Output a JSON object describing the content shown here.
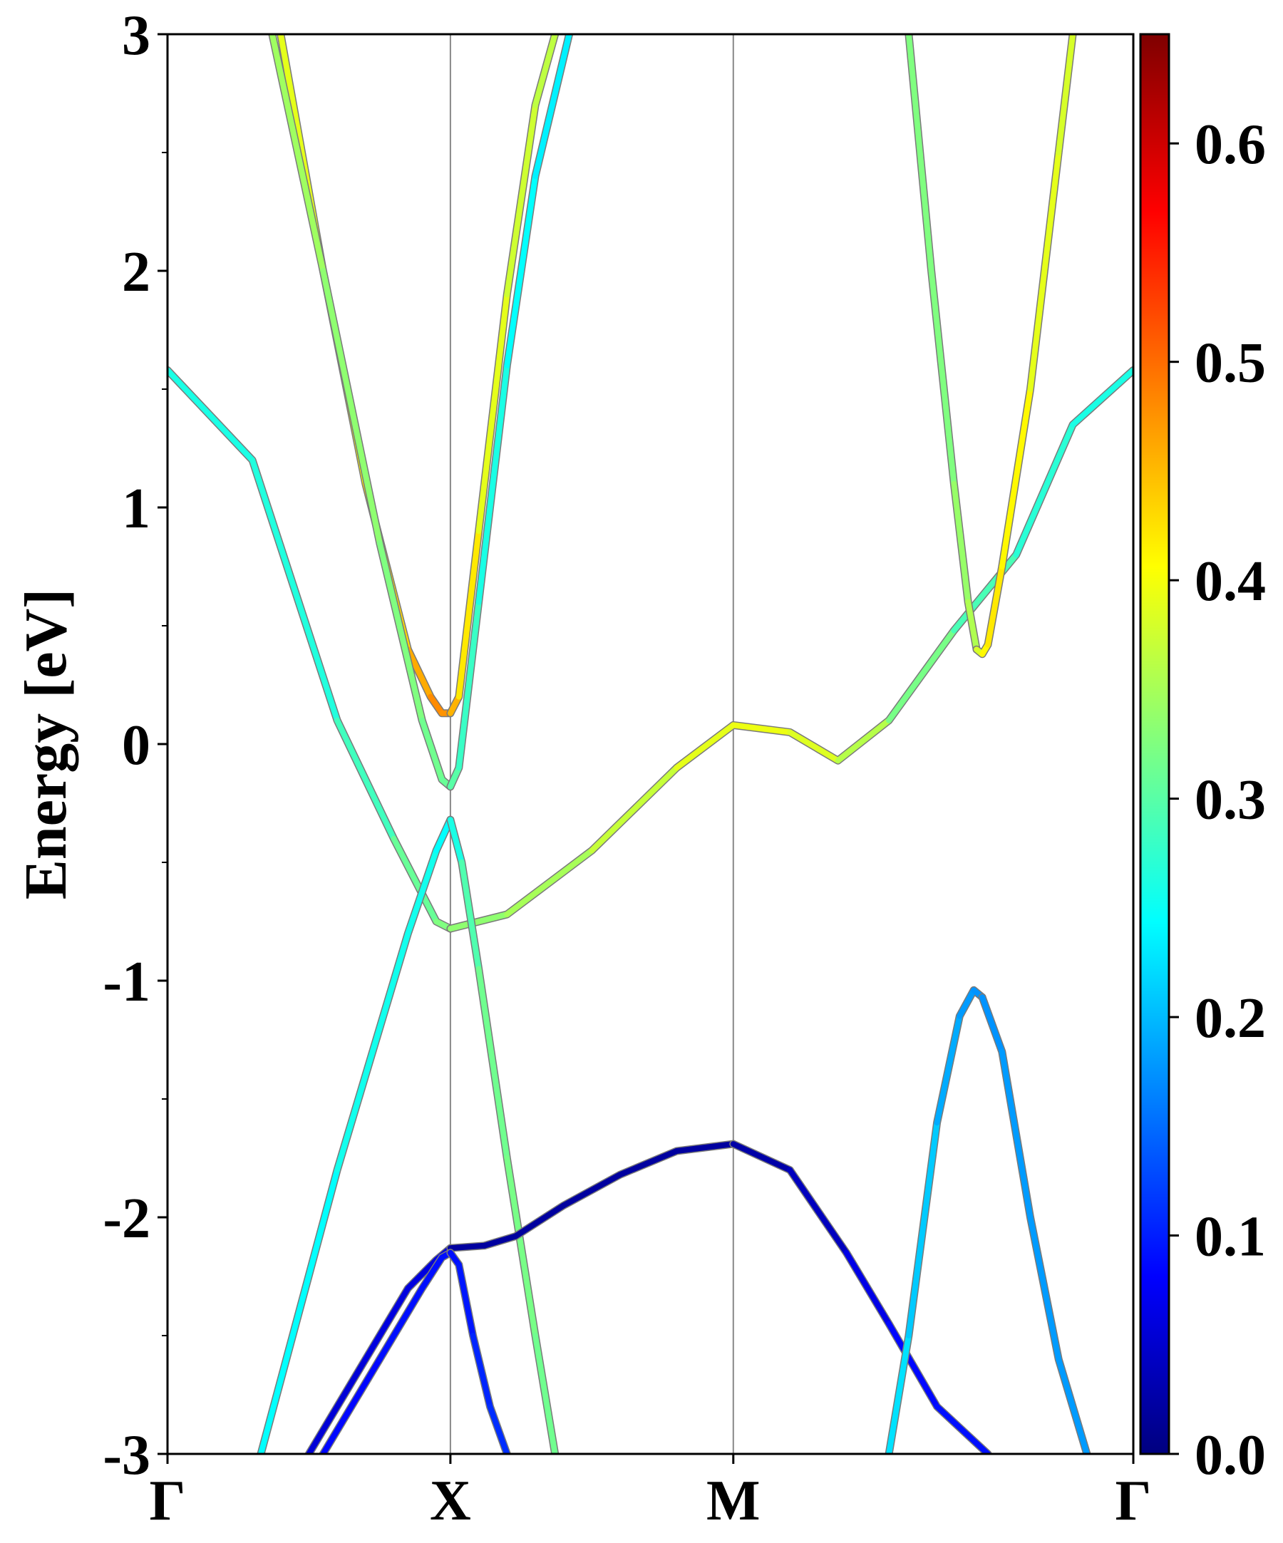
{
  "chart_data": {
    "type": "line",
    "title": "",
    "ylabel": "Energy [eV]",
    "xlabel": "",
    "ylim": [
      -3,
      3
    ],
    "y_ticks": [
      "3",
      "2",
      "1",
      "0",
      "-1",
      "-2",
      "-3"
    ],
    "y_tick_values": [
      3,
      2,
      1,
      0,
      -1,
      -2,
      -3
    ],
    "k_path_labels": [
      "Γ",
      "X",
      "M",
      "Γ"
    ],
    "k_path_values": [
      0,
      1,
      2,
      3.414
    ],
    "colorbar": {
      "colormap": "jet",
      "range": [
        0.0,
        0.65
      ],
      "ticks": [
        "0.0",
        "0.1",
        "0.2",
        "0.3",
        "0.4",
        "0.5",
        "0.6"
      ],
      "tick_values": [
        0.0,
        0.1,
        0.2,
        0.3,
        0.4,
        0.5,
        0.6
      ]
    },
    "grid": false,
    "series": [
      {
        "x": [
          0,
          0.3,
          0.6,
          0.8,
          0.95,
          1.0
        ],
        "y": [
          1.58,
          1.2,
          0.1,
          -0.4,
          -0.75,
          -0.78
        ],
        "c": [
          0.26,
          0.26,
          0.27,
          0.3,
          0.32,
          0.33
        ]
      },
      {
        "x": [
          1.0,
          1.2,
          1.5,
          1.8,
          2.0,
          2.2,
          2.37,
          2.55,
          2.78,
          3.0,
          3.2,
          3.414
        ],
        "y": [
          -0.78,
          -0.72,
          -0.45,
          -0.1,
          0.08,
          0.05,
          -0.07,
          0.1,
          0.48,
          0.8,
          1.35,
          1.58
        ],
        "c": [
          0.33,
          0.34,
          0.36,
          0.38,
          0.4,
          0.39,
          0.38,
          0.34,
          0.3,
          0.28,
          0.26,
          0.26
        ]
      },
      {
        "x": [
          0.4,
          0.55,
          0.7,
          0.85,
          0.93,
          0.97,
          1.0
        ],
        "y": [
          3.0,
          2.0,
          1.1,
          0.4,
          0.2,
          0.13,
          0.13
        ],
        "c": [
          0.38,
          0.4,
          0.42,
          0.44,
          0.48,
          0.48,
          0.47
        ]
      },
      {
        "x": [
          1.0,
          1.03,
          1.1,
          1.2,
          1.3,
          1.37
        ],
        "y": [
          0.13,
          0.2,
          0.9,
          1.9,
          2.7,
          3.0
        ],
        "c": [
          0.47,
          0.44,
          0.4,
          0.38,
          0.37,
          0.36
        ]
      },
      {
        "x": [
          0.37,
          0.55,
          0.75,
          0.9,
          0.97,
          1.0
        ],
        "y": [
          3.0,
          2.0,
          0.85,
          0.1,
          -0.15,
          -0.18
        ],
        "c": [
          0.35,
          0.34,
          0.33,
          0.32,
          0.31,
          0.31
        ]
      },
      {
        "x": [
          1.0,
          1.03,
          1.1,
          1.2,
          1.3,
          1.42
        ],
        "y": [
          -0.18,
          -0.1,
          0.6,
          1.6,
          2.4,
          3.0
        ],
        "c": [
          0.31,
          0.29,
          0.27,
          0.25,
          0.24,
          0.23
        ]
      },
      {
        "x": [
          0.33,
          0.6,
          0.85,
          0.95,
          1.0
        ],
        "y": [
          -3.0,
          -1.8,
          -0.8,
          -0.45,
          -0.32
        ],
        "c": [
          0.24,
          0.25,
          0.26,
          0.25,
          0.24
        ]
      },
      {
        "x": [
          1.0,
          1.04,
          1.1,
          1.2,
          1.3,
          1.37
        ],
        "y": [
          -0.32,
          -0.5,
          -0.95,
          -1.75,
          -2.5,
          -3.0
        ],
        "c": [
          0.24,
          0.28,
          0.31,
          0.32,
          0.32,
          0.31
        ]
      },
      {
        "x": [
          0.5,
          0.7,
          0.85,
          0.95,
          1.0
        ],
        "y": [
          -3.0,
          -2.6,
          -2.3,
          -2.18,
          -2.13
        ],
        "c": [
          0.05,
          0.06,
          0.06,
          0.06,
          0.06
        ]
      },
      {
        "x": [
          1.0,
          1.12,
          1.23,
          1.4,
          1.6,
          1.8,
          2.0
        ],
        "y": [
          -2.13,
          -2.12,
          -2.08,
          -1.95,
          -1.82,
          -1.72,
          -1.69
        ],
        "c": [
          0.02,
          0.02,
          0.02,
          0.02,
          0.02,
          0.02,
          0.02
        ]
      },
      {
        "x": [
          2.0,
          2.2,
          2.4,
          2.55,
          2.72,
          2.9
        ],
        "y": [
          -1.69,
          -1.8,
          -2.15,
          -2.45,
          -2.8,
          -3.0
        ],
        "c": [
          0.02,
          0.03,
          0.05,
          0.08,
          0.09,
          0.09
        ]
      },
      {
        "x": [
          0.55,
          0.75,
          0.9,
          0.97,
          1.0
        ],
        "y": [
          -3.0,
          -2.6,
          -2.3,
          -2.17,
          -2.15
        ],
        "c": [
          0.08,
          0.09,
          0.09,
          0.09,
          0.09
        ]
      },
      {
        "x": [
          1.0,
          1.03,
          1.08,
          1.14,
          1.2
        ],
        "y": [
          -2.15,
          -2.2,
          -2.5,
          -2.8,
          -3.0
        ],
        "c": [
          0.09,
          0.09,
          0.1,
          0.11,
          0.11
        ]
      },
      {
        "x": [
          2.55,
          2.62,
          2.72,
          2.8,
          2.85,
          2.88
        ],
        "y": [
          -3.0,
          -2.5,
          -1.6,
          -1.15,
          -1.04,
          -1.07
        ],
        "c": [
          0.23,
          0.22,
          0.2,
          0.18,
          0.18,
          0.17
        ]
      },
      {
        "x": [
          2.88,
          2.95,
          3.05,
          3.15,
          3.25
        ],
        "y": [
          -1.07,
          -1.3,
          -2.0,
          -2.6,
          -3.0
        ],
        "c": [
          0.17,
          0.18,
          0.18,
          0.18,
          0.18
        ]
      },
      {
        "x": [
          2.62,
          2.7,
          2.78,
          2.83,
          2.86
        ],
        "y": [
          3.0,
          2.0,
          1.1,
          0.6,
          0.4
        ],
        "c": [
          0.33,
          0.32,
          0.33,
          0.35,
          0.36
        ]
      },
      {
        "x": [
          2.86,
          2.88,
          2.9,
          2.95,
          3.05,
          3.15,
          3.2
        ],
        "y": [
          0.4,
          0.38,
          0.42,
          0.75,
          1.5,
          2.5,
          3.0
        ],
        "c": [
          0.36,
          0.4,
          0.42,
          0.42,
          0.4,
          0.38,
          0.38
        ]
      }
    ]
  }
}
